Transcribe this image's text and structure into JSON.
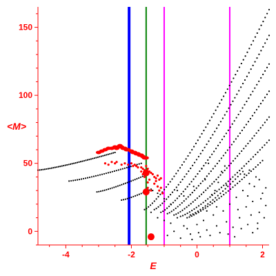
{
  "chart_data": {
    "type": "scatter",
    "title": "",
    "xlabel": "E",
    "ylabel": "<M>",
    "xlim": [
      -4.85,
      2.2
    ],
    "ylim": [
      -10,
      165
    ],
    "x_ticks": [
      {
        "value": -4,
        "label": "-4"
      },
      {
        "value": -2,
        "label": "-2"
      },
      {
        "value": 0,
        "label": "0"
      },
      {
        "value": 2,
        "label": "2"
      }
    ],
    "y_ticks": [
      {
        "value": 0,
        "label": "0"
      },
      {
        "value": 50,
        "label": "50"
      },
      {
        "value": 100,
        "label": "100"
      },
      {
        "value": 150,
        "label": "150"
      }
    ],
    "grid": false,
    "colors": {
      "axis": "#ff0000",
      "dots": "#000000",
      "highlight": "#ff0000",
      "line_blue": "#0000ff",
      "line_green": "#008000",
      "line_magenta": "#ff00ff"
    },
    "vertical_lines": [
      {
        "x": -2.07,
        "color": "#0000ff"
      },
      {
        "x": -1.55,
        "color": "#008000"
      },
      {
        "x": -1.0,
        "color": "#ff00ff"
      },
      {
        "x": 1.0,
        "color": "#ff00ff"
      }
    ],
    "black_curves": [
      {
        "x_start": -4.85,
        "x_end": -2.5,
        "y_start": 45,
        "y_end": 58,
        "n": 46
      },
      {
        "x_start": -3.9,
        "x_end": -1.7,
        "y_start": 37,
        "y_end": 50,
        "n": 36
      },
      {
        "x_start": -3.05,
        "x_end": -1.6,
        "y_start": 29,
        "y_end": 41,
        "n": 26
      },
      {
        "x_start": -2.3,
        "x_end": -1.4,
        "y_start": 23,
        "y_end": 31,
        "n": 16
      },
      {
        "x_start": -1.6,
        "x_end": 2.2,
        "y_start": 16,
        "y_end": 163,
        "n": 64
      },
      {
        "x_start": -1.3,
        "x_end": 2.2,
        "y_start": 16,
        "y_end": 144,
        "n": 58
      },
      {
        "x_start": -1.1,
        "x_end": 2.2,
        "y_start": 14,
        "y_end": 123,
        "n": 54
      },
      {
        "x_start": -0.9,
        "x_end": 2.2,
        "y_start": 13,
        "y_end": 103,
        "n": 50
      },
      {
        "x_start": -0.7,
        "x_end": 2.2,
        "y_start": 12,
        "y_end": 84,
        "n": 46
      },
      {
        "x_start": -0.5,
        "x_end": 2.2,
        "y_start": 11,
        "y_end": 67,
        "n": 40
      },
      {
        "x_start": -0.3,
        "x_end": 2.0,
        "y_start": 10,
        "y_end": 52,
        "n": 34
      },
      {
        "x_start": -0.2,
        "x_end": 1.4,
        "y_start": 12,
        "y_end": 44,
        "n": 22
      }
    ],
    "black_scatter": [
      [
        -0.9,
        -3
      ],
      [
        -0.7,
        0
      ],
      [
        -0.5,
        -5
      ],
      [
        -0.3,
        2
      ],
      [
        -0.2,
        -2
      ],
      [
        0.0,
        5
      ],
      [
        0.1,
        -4
      ],
      [
        0.2,
        8
      ],
      [
        0.3,
        1
      ],
      [
        0.4,
        -3
      ],
      [
        0.5,
        12
      ],
      [
        0.6,
        4
      ],
      [
        0.7,
        -1
      ],
      [
        0.8,
        15
      ],
      [
        0.9,
        7
      ],
      [
        1.0,
        20
      ],
      [
        1.1,
        3
      ],
      [
        1.2,
        25
      ],
      [
        1.3,
        10
      ],
      [
        1.4,
        30
      ],
      [
        1.5,
        18
      ],
      [
        1.6,
        35
      ],
      [
        1.7,
        22
      ],
      [
        1.8,
        40
      ],
      [
        1.9,
        14
      ],
      [
        2.0,
        28
      ],
      [
        2.1,
        19
      ],
      [
        1.45,
        42
      ],
      [
        1.55,
        26
      ],
      [
        1.65,
        12
      ],
      [
        1.75,
        33
      ],
      [
        1.85,
        6
      ],
      [
        1.95,
        24
      ],
      [
        0.55,
        30
      ],
      [
        0.65,
        36
      ],
      [
        0.75,
        44
      ],
      [
        0.85,
        48
      ],
      [
        0.25,
        38
      ],
      [
        0.15,
        46
      ],
      [
        0.35,
        50
      ],
      [
        0.45,
        27
      ],
      [
        -0.1,
        33
      ],
      [
        -0.4,
        26
      ],
      [
        -0.6,
        30
      ],
      [
        -0.8,
        20
      ],
      [
        -1.0,
        24
      ],
      [
        -1.2,
        28
      ],
      [
        -1.35,
        30
      ],
      [
        0.95,
        -2
      ],
      [
        1.15,
        -4
      ],
      [
        1.35,
        2
      ],
      [
        1.55,
        5
      ],
      [
        1.7,
        -1
      ],
      [
        1.85,
        2
      ],
      [
        2.05,
        10
      ],
      [
        -0.15,
        -6
      ],
      [
        0.05,
        -1
      ],
      [
        0.3,
        15
      ],
      [
        0.6,
        18
      ],
      [
        0.9,
        34
      ],
      [
        1.25,
        16
      ],
      [
        1.6,
        45
      ],
      [
        1.9,
        38
      ],
      [
        2.1,
        32
      ],
      [
        -1.4,
        14
      ],
      [
        -1.2,
        10
      ],
      [
        -1.0,
        8
      ],
      [
        -0.8,
        6
      ],
      [
        -0.6,
        10
      ],
      [
        -0.4,
        4
      ]
    ],
    "red_band": [
      [
        -3.0,
        58
      ],
      [
        -2.9,
        59
      ],
      [
        -2.8,
        60
      ],
      [
        -2.7,
        61
      ],
      [
        -2.6,
        61
      ],
      [
        -2.5,
        62
      ],
      [
        -2.45,
        61
      ],
      [
        -2.4,
        62
      ],
      [
        -2.35,
        63
      ],
      [
        -2.3,
        62
      ],
      [
        -2.25,
        61
      ],
      [
        -2.2,
        61
      ],
      [
        -2.15,
        60
      ],
      [
        -2.1,
        60
      ],
      [
        -2.0,
        59
      ],
      [
        -1.95,
        58
      ],
      [
        -1.9,
        58
      ],
      [
        -1.85,
        57
      ],
      [
        -1.8,
        57
      ],
      [
        -1.75,
        56
      ],
      [
        -1.7,
        56
      ],
      [
        -1.65,
        55
      ],
      [
        -1.6,
        54
      ],
      [
        -1.55,
        54
      ]
    ],
    "red_scatter": [
      [
        -2.8,
        50
      ],
      [
        -2.7,
        49
      ],
      [
        -2.6,
        51
      ],
      [
        -2.5,
        50
      ],
      [
        -2.45,
        51
      ],
      [
        -2.3,
        49
      ],
      [
        -2.2,
        50
      ],
      [
        -2.1,
        49
      ],
      [
        -2.0,
        50
      ],
      [
        -1.95,
        48
      ],
      [
        -1.9,
        49
      ],
      [
        -1.85,
        48
      ],
      [
        -1.8,
        47
      ],
      [
        -1.7,
        47
      ],
      [
        -1.65,
        46
      ],
      [
        -1.6,
        45
      ],
      [
        -1.55,
        48
      ],
      [
        -1.5,
        46
      ],
      [
        -1.45,
        44
      ],
      [
        -1.4,
        43
      ],
      [
        -1.35,
        42
      ],
      [
        -1.3,
        40
      ],
      [
        -1.25,
        39
      ],
      [
        -1.2,
        41
      ],
      [
        -1.15,
        38
      ],
      [
        -1.1,
        39
      ],
      [
        -1.3,
        35
      ],
      [
        -1.2,
        33
      ],
      [
        -1.15,
        30
      ],
      [
        -1.1,
        32
      ],
      [
        -1.05,
        28
      ],
      [
        -1.4,
        30
      ],
      [
        -1.5,
        36
      ],
      [
        -1.45,
        38
      ],
      [
        -1.6,
        40
      ],
      [
        -1.65,
        42
      ],
      [
        -1.7,
        44
      ],
      [
        -1.25,
        37
      ],
      [
        -1.5,
        32
      ],
      [
        -1.55,
        27
      ]
    ],
    "red_large_points": [
      [
        -1.55,
        43
      ],
      [
        -1.55,
        29
      ],
      [
        -1.4,
        -4
      ]
    ]
  }
}
